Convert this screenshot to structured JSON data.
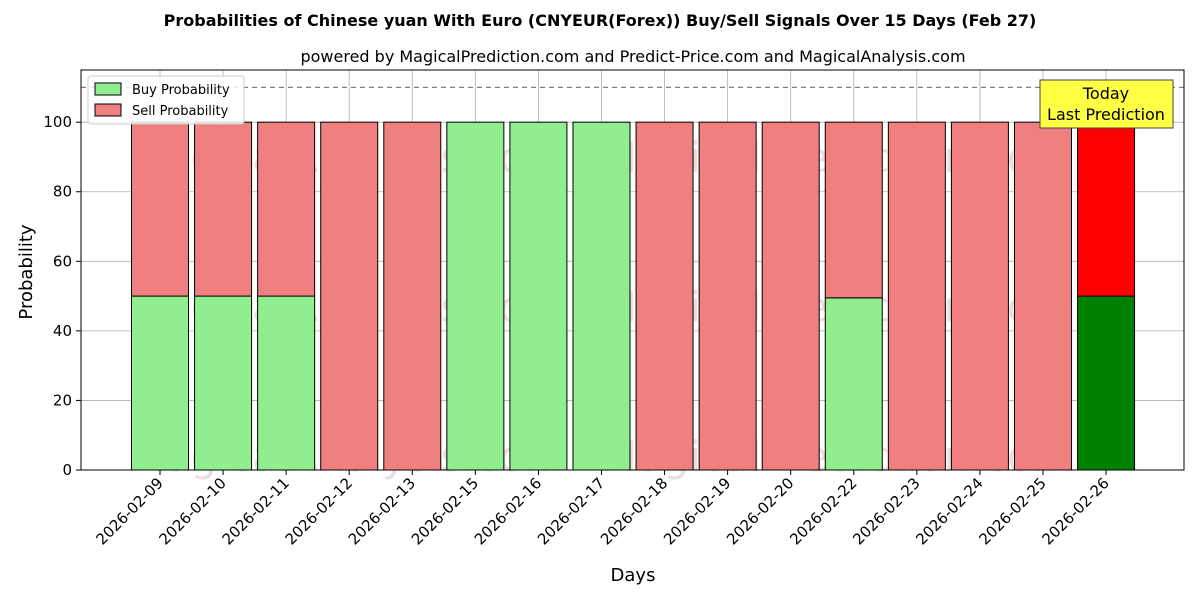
{
  "chart_data": {
    "type": "bar",
    "stacked": true,
    "title": "Probabilities of Chinese yuan With Euro (CNYEUR(Forex)) Buy/Sell Signals Over 15 Days (Feb 27)",
    "subtitle": "powered by MagicalPrediction.com and Predict-Price.com and MagicalAnalysis.com",
    "xlabel": "Days",
    "ylabel": "Probability",
    "ylim": [
      0,
      115
    ],
    "yticks": [
      0,
      20,
      40,
      60,
      80,
      100
    ],
    "grid": true,
    "legend_position": "top-left",
    "threshold_line": 110,
    "categories": [
      "2026-02-09",
      "2026-02-10",
      "2026-02-11",
      "2026-02-12",
      "2026-02-13",
      "2026-02-15",
      "2026-02-16",
      "2026-02-17",
      "2026-02-18",
      "2026-02-19",
      "2026-02-20",
      "2026-02-22",
      "2026-02-23",
      "2026-02-24",
      "2026-02-25",
      "2026-02-26"
    ],
    "series": [
      {
        "name": "Buy Probability",
        "color": "#90ee90",
        "values": [
          50,
          50,
          50,
          0,
          0,
          100,
          100,
          100,
          0,
          0,
          0,
          49.5,
          0,
          0,
          0,
          50
        ]
      },
      {
        "name": "Sell Probability",
        "color": "#f08080",
        "values": [
          50,
          50,
          50,
          100,
          100,
          0,
          0,
          0,
          100,
          100,
          100,
          50.5,
          100,
          100,
          100,
          50
        ]
      }
    ],
    "highlight": {
      "index": 15,
      "buy_color": "#008000",
      "sell_color": "#ff0000"
    },
    "annotation": {
      "lines": [
        "Today",
        "Last Prediction"
      ],
      "color": "#ffff44"
    },
    "watermarks": [
      "MagicalAnalysis.com",
      "MagicalPrediction.com"
    ]
  }
}
